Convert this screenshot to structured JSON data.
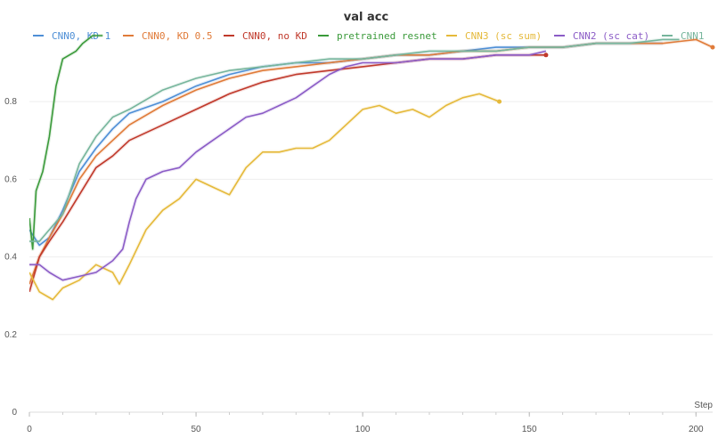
{
  "chart_data": {
    "type": "line",
    "title": "val acc",
    "xlabel": "Step",
    "ylabel": "",
    "xlim": [
      0,
      205
    ],
    "ylim": [
      0,
      0.97
    ],
    "x_ticks": [
      0,
      50,
      100,
      150,
      200
    ],
    "y_ticks": [
      0,
      0.2,
      0.4,
      0.6,
      0.8
    ],
    "grid": true,
    "legend_position": "top",
    "series": [
      {
        "name": "CNN0, KD 1",
        "color": "#4e8fd6",
        "end_marker": false,
        "points": [
          [
            0,
            0.47
          ],
          [
            3,
            0.43
          ],
          [
            6,
            0.45
          ],
          [
            10,
            0.52
          ],
          [
            15,
            0.62
          ],
          [
            20,
            0.68
          ],
          [
            25,
            0.73
          ],
          [
            30,
            0.77
          ],
          [
            40,
            0.8
          ],
          [
            50,
            0.84
          ],
          [
            60,
            0.87
          ],
          [
            70,
            0.89
          ],
          [
            80,
            0.9
          ],
          [
            90,
            0.9
          ],
          [
            100,
            0.91
          ],
          [
            110,
            0.92
          ],
          [
            120,
            0.92
          ],
          [
            130,
            0.93
          ],
          [
            140,
            0.94
          ],
          [
            150,
            0.94
          ],
          [
            160,
            0.94
          ],
          [
            170,
            0.95
          ],
          [
            180,
            0.95
          ],
          [
            190,
            0.95
          ]
        ]
      },
      {
        "name": "CNN0, KD 0.5",
        "color": "#e07b39",
        "end_marker": true,
        "points": [
          [
            0,
            0.33
          ],
          [
            3,
            0.4
          ],
          [
            6,
            0.45
          ],
          [
            10,
            0.51
          ],
          [
            15,
            0.6
          ],
          [
            20,
            0.66
          ],
          [
            25,
            0.7
          ],
          [
            30,
            0.74
          ],
          [
            40,
            0.79
          ],
          [
            50,
            0.83
          ],
          [
            60,
            0.86
          ],
          [
            70,
            0.88
          ],
          [
            80,
            0.89
          ],
          [
            90,
            0.9
          ],
          [
            100,
            0.91
          ],
          [
            110,
            0.92
          ],
          [
            120,
            0.92
          ],
          [
            130,
            0.93
          ],
          [
            140,
            0.93
          ],
          [
            150,
            0.94
          ],
          [
            160,
            0.94
          ],
          [
            170,
            0.95
          ],
          [
            180,
            0.95
          ],
          [
            190,
            0.95
          ],
          [
            200,
            0.96
          ],
          [
            205,
            0.94
          ]
        ]
      },
      {
        "name": "CNN0, no KD",
        "color": "#c0392b",
        "end_marker": true,
        "points": [
          [
            0,
            0.31
          ],
          [
            3,
            0.4
          ],
          [
            6,
            0.44
          ],
          [
            10,
            0.49
          ],
          [
            15,
            0.56
          ],
          [
            20,
            0.63
          ],
          [
            25,
            0.66
          ],
          [
            30,
            0.7
          ],
          [
            40,
            0.74
          ],
          [
            50,
            0.78
          ],
          [
            60,
            0.82
          ],
          [
            70,
            0.85
          ],
          [
            80,
            0.87
          ],
          [
            90,
            0.88
          ],
          [
            100,
            0.89
          ],
          [
            110,
            0.9
          ],
          [
            120,
            0.91
          ],
          [
            130,
            0.91
          ],
          [
            140,
            0.92
          ],
          [
            150,
            0.92
          ],
          [
            155,
            0.92
          ]
        ]
      },
      {
        "name": "pretrained resnet",
        "color": "#3a9a3a",
        "end_marker": false,
        "points": [
          [
            0,
            0.5
          ],
          [
            1,
            0.42
          ],
          [
            2,
            0.57
          ],
          [
            4,
            0.62
          ],
          [
            6,
            0.71
          ],
          [
            8,
            0.84
          ],
          [
            10,
            0.91
          ],
          [
            12,
            0.92
          ],
          [
            14,
            0.93
          ],
          [
            16,
            0.95
          ],
          [
            19,
            0.97
          ],
          [
            22,
            0.97
          ]
        ]
      },
      {
        "name": "CNN3 (sc sum)",
        "color": "#e5b93a",
        "end_marker": true,
        "points": [
          [
            0,
            0.36
          ],
          [
            3,
            0.31
          ],
          [
            7,
            0.29
          ],
          [
            10,
            0.32
          ],
          [
            15,
            0.34
          ],
          [
            20,
            0.38
          ],
          [
            25,
            0.36
          ],
          [
            27,
            0.33
          ],
          [
            30,
            0.38
          ],
          [
            35,
            0.47
          ],
          [
            40,
            0.52
          ],
          [
            45,
            0.55
          ],
          [
            50,
            0.6
          ],
          [
            55,
            0.58
          ],
          [
            60,
            0.56
          ],
          [
            65,
            0.63
          ],
          [
            70,
            0.67
          ],
          [
            75,
            0.67
          ],
          [
            80,
            0.68
          ],
          [
            85,
            0.68
          ],
          [
            90,
            0.7
          ],
          [
            95,
            0.74
          ],
          [
            100,
            0.78
          ],
          [
            105,
            0.79
          ],
          [
            110,
            0.77
          ],
          [
            115,
            0.78
          ],
          [
            120,
            0.76
          ],
          [
            125,
            0.79
          ],
          [
            130,
            0.81
          ],
          [
            135,
            0.82
          ],
          [
            141,
            0.8
          ]
        ]
      },
      {
        "name": "CNN2 (sc cat)",
        "color": "#8b5cc6",
        "end_marker": false,
        "points": [
          [
            0,
            0.38
          ],
          [
            3,
            0.38
          ],
          [
            6,
            0.36
          ],
          [
            8,
            0.35
          ],
          [
            10,
            0.34
          ],
          [
            15,
            0.35
          ],
          [
            20,
            0.36
          ],
          [
            25,
            0.39
          ],
          [
            28,
            0.42
          ],
          [
            30,
            0.49
          ],
          [
            32,
            0.55
          ],
          [
            35,
            0.6
          ],
          [
            40,
            0.62
          ],
          [
            45,
            0.63
          ],
          [
            50,
            0.67
          ],
          [
            55,
            0.7
          ],
          [
            60,
            0.73
          ],
          [
            65,
            0.76
          ],
          [
            70,
            0.77
          ],
          [
            75,
            0.79
          ],
          [
            80,
            0.81
          ],
          [
            85,
            0.84
          ],
          [
            90,
            0.87
          ],
          [
            95,
            0.89
          ],
          [
            100,
            0.9
          ],
          [
            110,
            0.9
          ],
          [
            120,
            0.91
          ],
          [
            130,
            0.91
          ],
          [
            140,
            0.92
          ],
          [
            150,
            0.92
          ],
          [
            155,
            0.93
          ]
        ]
      },
      {
        "name": "CNN1",
        "color": "#76b59c",
        "end_marker": false,
        "points": [
          [
            0,
            0.44
          ],
          [
            3,
            0.44
          ],
          [
            6,
            0.47
          ],
          [
            10,
            0.51
          ],
          [
            15,
            0.64
          ],
          [
            20,
            0.71
          ],
          [
            25,
            0.76
          ],
          [
            30,
            0.78
          ],
          [
            40,
            0.83
          ],
          [
            50,
            0.86
          ],
          [
            60,
            0.88
          ],
          [
            70,
            0.89
          ],
          [
            80,
            0.9
          ],
          [
            90,
            0.91
          ],
          [
            100,
            0.91
          ],
          [
            110,
            0.92
          ],
          [
            120,
            0.93
          ],
          [
            130,
            0.93
          ],
          [
            140,
            0.93
          ],
          [
            150,
            0.94
          ],
          [
            160,
            0.94
          ],
          [
            170,
            0.95
          ],
          [
            180,
            0.95
          ],
          [
            190,
            0.96
          ],
          [
            195,
            0.96
          ]
        ]
      }
    ]
  }
}
